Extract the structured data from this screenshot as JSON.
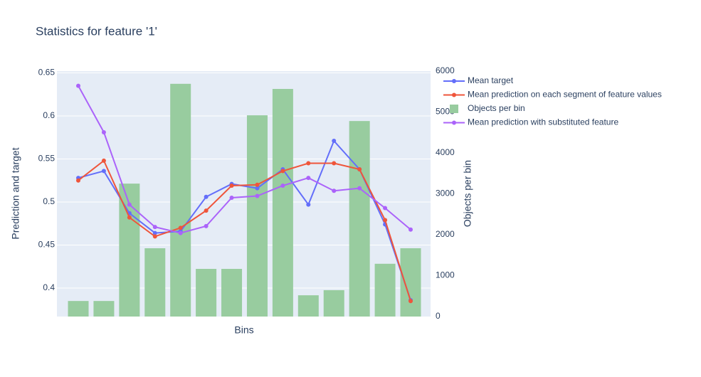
{
  "chart_data": {
    "type": "combo",
    "title": "Statistics for feature '1'",
    "x_label": "Bins",
    "y_label": "Prediction and target",
    "y2_label": "Objects per bin",
    "categories": [
      null,
      null,
      null,
      null,
      null,
      null,
      null,
      null,
      null,
      null,
      null,
      null,
      null,
      null
    ],
    "series": [
      {
        "name": "Mean target",
        "type": "line",
        "color": "#636efa",
        "values": [
          0.528,
          0.536,
          0.487,
          0.464,
          0.466,
          0.506,
          0.521,
          0.516,
          0.538,
          0.497,
          0.571,
          0.538,
          0.474,
          0.386
        ]
      },
      {
        "name": "Mean prediction on each segment of feature values",
        "type": "line",
        "color": "#ef553b",
        "values": [
          0.525,
          0.548,
          0.482,
          0.46,
          0.47,
          0.49,
          0.519,
          0.52,
          0.536,
          0.545,
          0.545,
          0.538,
          0.479,
          0.385
        ]
      },
      {
        "name": "Objects per bin",
        "type": "bar",
        "axis": "y2",
        "color": "#98cc9f",
        "values": [
          380,
          380,
          3250,
          1670,
          5690,
          1165,
          1165,
          4920,
          5565,
          520,
          645,
          4780,
          1290,
          1670
        ]
      },
      {
        "name": "Mean prediction with substituted feature",
        "type": "line",
        "color": "#ab63fa",
        "values": [
          0.635,
          0.581,
          0.497,
          0.471,
          0.464,
          0.472,
          0.505,
          0.507,
          0.519,
          0.528,
          0.513,
          0.516,
          0.493,
          0.468
        ]
      }
    ],
    "ylim": [
      0.367,
      0.652
    ],
    "yticks": [
      0.4,
      0.45,
      0.5,
      0.55,
      0.6,
      0.65
    ],
    "y2lim": [
      0,
      6000
    ],
    "y2ticks": [
      0,
      1000,
      2000,
      3000,
      4000,
      5000,
      6000
    ],
    "grid": true,
    "legend": "top-right"
  }
}
